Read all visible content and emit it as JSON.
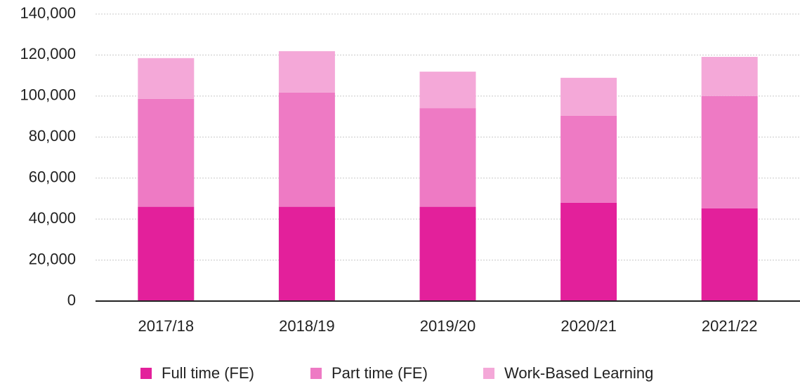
{
  "chart_data": {
    "type": "stacked_bar",
    "categories": [
      "2017/18",
      "2018/19",
      "2019/20",
      "2020/21",
      "2021/22"
    ],
    "series": [
      {
        "name": "Full time (FE)",
        "color": "#e3209b",
        "values": [
          46000,
          46000,
          46000,
          48000,
          45200
        ]
      },
      {
        "name": "Part time (FE)",
        "color": "#ee7ac4",
        "values": [
          52600,
          55700,
          48100,
          42400,
          54800
        ]
      },
      {
        "name": "Work-Based Learning",
        "color": "#f4a8d8",
        "values": [
          19900,
          20200,
          17800,
          18500,
          19100
        ]
      }
    ],
    "ylim": [
      0,
      140000
    ],
    "yticks": [
      0,
      {
        "value": 20000,
        "label": "20,000"
      },
      {
        "value": 40000,
        "label": "40,000"
      },
      {
        "value": 60000,
        "label": "60,000"
      },
      {
        "value": 80000,
        "label": "80,000"
      },
      {
        "value": 100000,
        "label": "100,000"
      },
      {
        "value": 120000,
        "label": "120,000"
      },
      {
        "value": 140000,
        "label": "140,000"
      }
    ],
    "grid": true,
    "legend": "bottom"
  }
}
